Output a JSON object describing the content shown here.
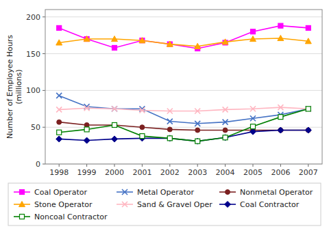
{
  "chart_data": {
    "type": "line",
    "x": [
      1998,
      1999,
      2000,
      2001,
      2002,
      2003,
      2004,
      2005,
      2006,
      2007
    ],
    "xlim": [
      1997.5,
      2007.5
    ],
    "xticks": [
      1998,
      1999,
      2000,
      2001,
      2002,
      2003,
      2004,
      2005,
      2006,
      2007
    ],
    "ylim": [
      0,
      210
    ],
    "yticks": [
      0,
      50,
      100,
      150,
      200
    ],
    "ylabel": "Number of Employee Hours\n(millions)",
    "grid": true,
    "legend": "bottom",
    "series": [
      {
        "name": "Coal Operator",
        "color": "#FF00FF",
        "marker": "square",
        "values": [
          185,
          170,
          158,
          168,
          163,
          157,
          165,
          180,
          188,
          185
        ]
      },
      {
        "name": "Metal Operator",
        "color": "#4472C4",
        "marker": "x",
        "values": [
          93,
          78,
          75,
          75,
          58,
          55,
          57,
          62,
          67,
          75
        ]
      },
      {
        "name": "Nonmetal Operator",
        "color": "#7B2020",
        "marker": "circle",
        "values": [
          57,
          53,
          53,
          50,
          47,
          46,
          46,
          46,
          46,
          46
        ]
      },
      {
        "name": "Stone Operator",
        "color": "#FFA500",
        "marker": "triangle",
        "values": [
          165,
          170,
          170,
          168,
          163,
          160,
          166,
          170,
          171,
          167
        ]
      },
      {
        "name": "Sand & Gravel Oper",
        "color": "#FFB6C1",
        "marker": "x",
        "values": [
          74,
          76,
          75,
          73,
          72,
          72,
          74,
          75,
          77,
          75
        ]
      },
      {
        "name": "Coal Contractor",
        "color": "#00008B",
        "marker": "diamond",
        "values": [
          34,
          32,
          34,
          35,
          35,
          31,
          36,
          44,
          46,
          46
        ]
      },
      {
        "name": "Noncoal Contractor",
        "color": "#008000",
        "marker": "open-square",
        "values": [
          43,
          47,
          53,
          38,
          35,
          31,
          36,
          51,
          64,
          75
        ]
      }
    ]
  }
}
